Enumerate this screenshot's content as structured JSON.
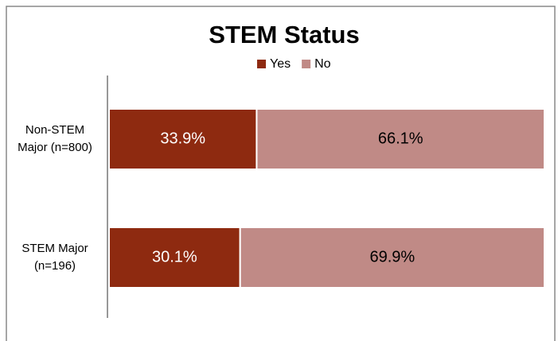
{
  "chart_data": {
    "type": "stacked-bar-horizontal",
    "title": "STEM Status",
    "categories": [
      "Non-STEM Major (n=800)",
      "STEM Major (n=196)"
    ],
    "series": [
      {
        "name": "Yes",
        "color": "#8e2a10",
        "values": [
          33.9,
          30.1
        ],
        "value_labels": [
          "33.9%",
          "30.1%"
        ]
      },
      {
        "name": "No",
        "color": "#c08a86",
        "values": [
          66.1,
          69.9
        ],
        "value_labels": [
          "66.1%",
          "69.9%"
        ]
      }
    ],
    "legend": "top"
  }
}
